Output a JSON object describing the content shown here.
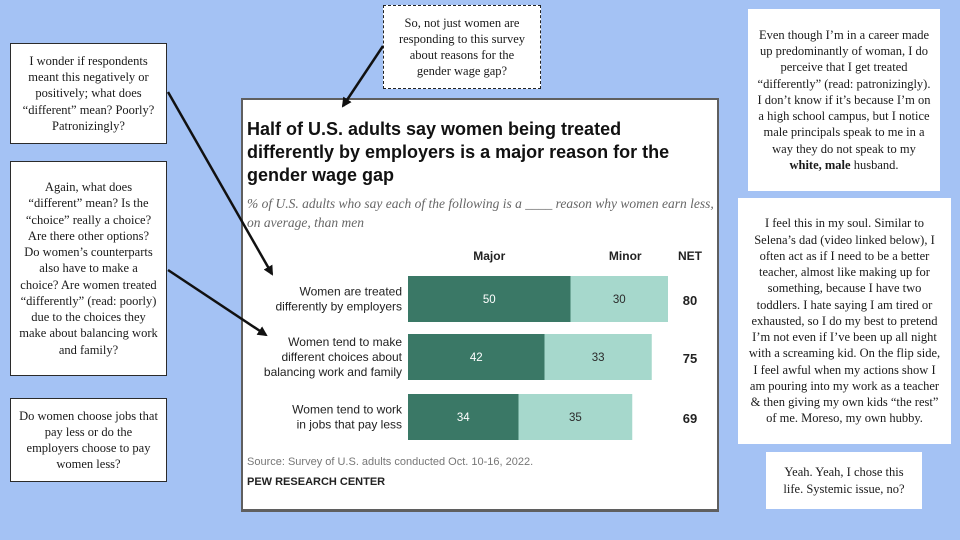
{
  "notes": {
    "top_left": "I wonder if respondents meant this negatively or positively; what does “different” mean? Poorly? Patronizingly?",
    "middle_left": "Again, what does “different” mean? Is the “choice” really a choice? Are there other options? Do women’s counterparts also have to make a choice? Are women treated “differently” (read: poorly) due to the choices they make about balancing work and family?",
    "bottom_left": "Do women choose jobs that pay less or do the employers choose to pay women less?",
    "top_center": "So, not just women are responding to this survey about reasons for the gender wage gap?",
    "top_right_a": "Even though I’m in a career made up predominantly of woman, I do perceive that I get treated “differently” (read: patronizingly). I don’t know if it’s because I’m on a high school campus, but I notice male principals speak to me in a way they do not speak to my",
    "top_right_bold": "white, male",
    "top_right_b": " husband.",
    "middle_right": "I feel this in my soul. Similar to Selena’s dad (video linked below), I often act as if I need to be a better teacher, almost like making up for something, because I have two toddlers. I hate saying I am tired or exhausted, so I do my best to pretend I’m not even if I’ve been up all night with a screaming kid. On the flip side, I feel awful when my actions show I am pouring into my work as a teacher & then giving my own kids “the rest” of me. Moreso, my own hubby.",
    "bottom_right": "Yeah. Yeah, I chose this life. Systemic issue, no?"
  },
  "chart_data": {
    "type": "bar",
    "stacked": true,
    "orientation": "horizontal",
    "title": "Half of U.S. adults say women being treated differently by employers is a major reason for the gender wage gap",
    "subtitle": "% of U.S. adults who say each of the following is a ____ reason why women earn less, on average, than men",
    "categories": [
      [
        "Women are treated",
        "differently by employers"
      ],
      [
        "Women tend to make",
        "different choices about",
        "balancing work and family"
      ],
      [
        "Women tend to work",
        "in jobs that pay less"
      ]
    ],
    "series": [
      {
        "name": "Major",
        "values": [
          50,
          42,
          34
        ],
        "color": "#3a7866"
      },
      {
        "name": "Minor",
        "values": [
          30,
          33,
          35
        ],
        "color": "#a6d8cc"
      }
    ],
    "net_label": "NET",
    "net": [
      80,
      75,
      69
    ],
    "source": "Source: Survey of U.S. adults conducted Oct. 10-16, 2022.",
    "org": "PEW RESEARCH CENTER"
  }
}
